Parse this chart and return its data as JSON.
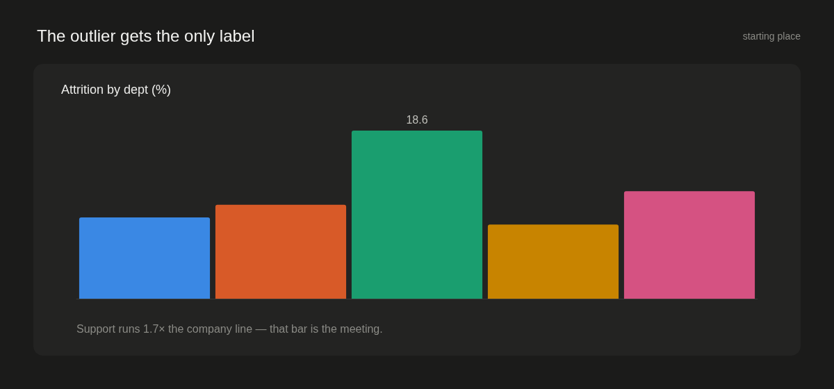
{
  "chart_data": {
    "type": "bar",
    "title": "The outlier gets the only label",
    "subtitle": "Attrition by dept (%)",
    "categories": [
      null,
      null,
      null,
      null,
      null
    ],
    "values": [
      9.0,
      10.4,
      18.6,
      8.2,
      11.9
    ],
    "colors": [
      "#3a88e4",
      "#d85a28",
      "#1a9e6f",
      "#c88400",
      "#d55282"
    ],
    "value_labels": [
      null,
      null,
      "18.6",
      null,
      null
    ],
    "tick_labels": false,
    "annotations": [
      "Support runs 1.7× the company line — that bar is the meeting.",
      "starting place"
    ]
  }
}
